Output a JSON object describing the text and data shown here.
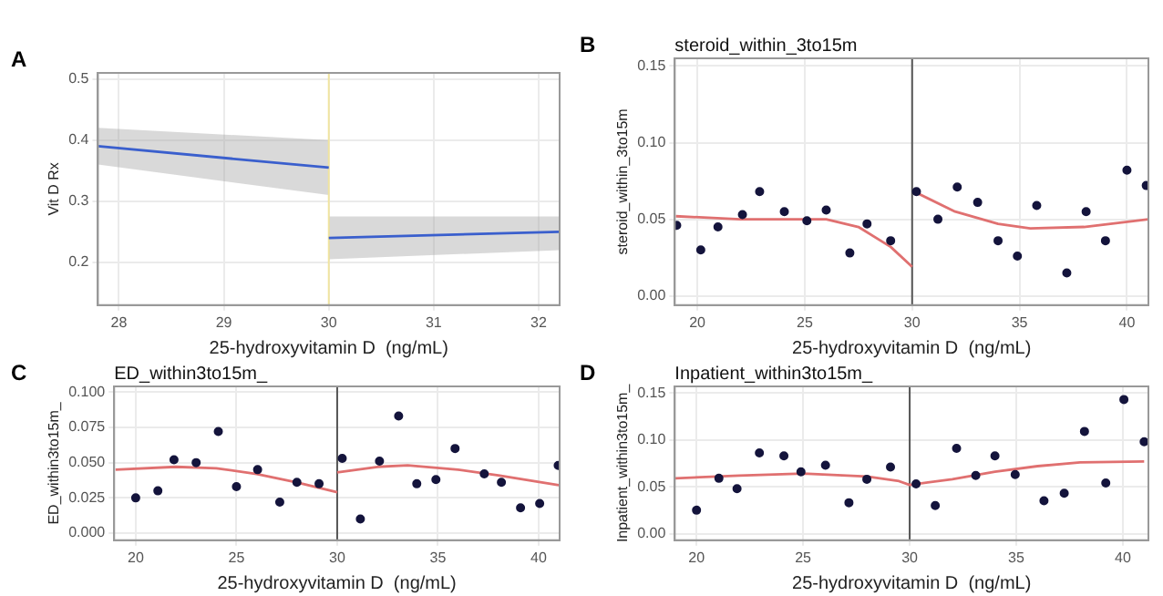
{
  "chart_data": [
    {
      "type": "line",
      "annotations": [
        "A"
      ],
      "xlabel": "25-hydroxyvitamin D  (ng/mL)",
      "ylabel": "Vit D Rx",
      "xlim": [
        27.8,
        32.2
      ],
      "xticks": [
        28,
        29,
        30,
        31,
        32
      ],
      "ylim": [
        0.13,
        0.51
      ],
      "yticks": [
        0.2,
        0.3,
        0.4,
        0.5
      ],
      "grid": true,
      "ref_lines": [
        {
          "axis": "x",
          "value": 30,
          "color": "#f0e4a0"
        }
      ],
      "series": [
        {
          "color": "#3a5fcd",
          "x": [
            27.8,
            30
          ],
          "values": [
            0.39,
            0.355
          ],
          "lower": [
            0.36,
            0.31
          ],
          "upper": [
            0.42,
            0.4
          ]
        },
        {
          "color": "#3a5fcd",
          "x": [
            30,
            32.2
          ],
          "values": [
            0.24,
            0.25
          ],
          "lower": [
            0.205,
            0.22
          ],
          "upper": [
            0.275,
            0.275
          ]
        }
      ]
    },
    {
      "type": "scatter",
      "annotations": [
        "B"
      ],
      "title": "steroid_within_3to15m",
      "xlabel": "25-hydroxyvitamin D  (ng/mL)",
      "ylabel": "steroid_within_3to15m",
      "xlim": [
        18.95,
        41
      ],
      "xticks": [
        20,
        25,
        30,
        35,
        40
      ],
      "ylim": [
        -0.006,
        0.155
      ],
      "yticks": [
        {
          "value": 0,
          "label": "0.00"
        },
        {
          "value": 0.05,
          "label": "0.05"
        },
        {
          "value": 0.1,
          "label": "0.10"
        },
        {
          "value": 0.15,
          "label": "0.15"
        }
      ],
      "grid": true,
      "ref_lines": [
        {
          "axis": "x",
          "value": 30,
          "color": "#555555"
        }
      ],
      "series": [
        {
          "color": "#14143c",
          "marker": "circle",
          "x": [
            19.04,
            20.16,
            20.96,
            22.1,
            22.9,
            24.05,
            25.1,
            26.0,
            27.1,
            27.9,
            29.0,
            30.2,
            31.2,
            32.1,
            33.05,
            34.0,
            34.9,
            35.8,
            37.2,
            38.1,
            39.0,
            40.0,
            40.9
          ],
          "values": [
            0.046,
            0.03,
            0.045,
            0.053,
            0.068,
            0.055,
            0.049,
            0.056,
            0.028,
            0.047,
            0.036,
            0.068,
            0.05,
            0.071,
            0.061,
            0.036,
            0.026,
            0.059,
            0.015,
            0.055,
            0.036,
            0.082,
            0.072
          ]
        },
        {
          "type": "line",
          "color": "#e07070",
          "x": [
            19,
            22,
            26,
            27.5,
            29,
            30
          ],
          "values": [
            0.052,
            0.05,
            0.05,
            0.045,
            0.032,
            0.019
          ]
        },
        {
          "type": "line",
          "color": "#e07070",
          "x": [
            30.1,
            32,
            34,
            35.5,
            38,
            41
          ],
          "values": [
            0.068,
            0.055,
            0.047,
            0.044,
            0.045,
            0.05
          ]
        }
      ]
    },
    {
      "type": "scatter",
      "annotations": [
        "C"
      ],
      "title": "ED_within3to15m_",
      "xlabel": "25-hydroxyvitamin D  (ng/mL)",
      "ylabel": "ED_within3to15m_",
      "xlim": [
        18.93,
        41.04
      ],
      "xticks": [
        20,
        25,
        30,
        35,
        40
      ],
      "ylim": [
        -0.005,
        0.104
      ],
      "yticks": [
        {
          "value": 0,
          "label": "0.000"
        },
        {
          "value": 0.025,
          "label": "0.025"
        },
        {
          "value": 0.05,
          "label": "0.050"
        },
        {
          "value": 0.075,
          "label": "0.075"
        },
        {
          "value": 0.1,
          "label": "0.100"
        }
      ],
      "grid": true,
      "ref_lines": [
        {
          "axis": "x",
          "value": 30,
          "color": "#555555"
        }
      ],
      "series": [
        {
          "color": "#14143c",
          "marker": "circle",
          "x": [
            20.0,
            21.1,
            21.9,
            23.0,
            24.1,
            25.0,
            26.05,
            27.15,
            28.0,
            29.1,
            30.25,
            31.15,
            32.1,
            33.05,
            33.95,
            34.9,
            35.85,
            37.3,
            38.15,
            39.1,
            40.05,
            40.97
          ],
          "values": [
            0.025,
            0.03,
            0.052,
            0.05,
            0.072,
            0.033,
            0.045,
            0.022,
            0.036,
            0.035,
            0.053,
            0.01,
            0.051,
            0.083,
            0.035,
            0.038,
            0.06,
            0.042,
            0.036,
            0.018,
            0.021,
            0.048
          ]
        },
        {
          "type": "line",
          "color": "#e07070",
          "x": [
            19,
            22,
            24,
            26,
            28,
            30
          ],
          "values": [
            0.045,
            0.047,
            0.046,
            0.042,
            0.036,
            0.029
          ]
        },
        {
          "type": "line",
          "color": "#e07070",
          "x": [
            30,
            32,
            33.5,
            36,
            38,
            41
          ],
          "values": [
            0.043,
            0.047,
            0.048,
            0.045,
            0.041,
            0.034
          ]
        }
      ]
    },
    {
      "type": "scatter",
      "annotations": [
        "D"
      ],
      "title": "Inpatient_within3to15m_",
      "xlabel": "25-hydroxyvitamin D  (ng/mL)",
      "ylabel": "Inpatient_within3to15m_",
      "xlim": [
        18.98,
        41.2
      ],
      "xticks": [
        20,
        25,
        30,
        35,
        40
      ],
      "ylim": [
        -0.007,
        0.157
      ],
      "yticks": [
        {
          "value": 0,
          "label": "0.00"
        },
        {
          "value": 0.05,
          "label": "0.05"
        },
        {
          "value": 0.1,
          "label": "0.10"
        },
        {
          "value": 0.15,
          "label": "0.15"
        }
      ],
      "grid": true,
      "ref_lines": [
        {
          "axis": "x",
          "value": 30,
          "color": "#555555"
        }
      ],
      "series": [
        {
          "color": "#14143c",
          "marker": "circle",
          "x": [
            20.0,
            21.05,
            21.9,
            22.95,
            24.1,
            24.9,
            26.05,
            27.15,
            27.99,
            29.1,
            30.3,
            31.2,
            32.2,
            33.1,
            34.0,
            34.95,
            36.3,
            37.25,
            38.2,
            39.2,
            40.05,
            41.0
          ],
          "values": [
            0.025,
            0.059,
            0.048,
            0.086,
            0.083,
            0.066,
            0.073,
            0.033,
            0.058,
            0.071,
            0.053,
            0.03,
            0.091,
            0.062,
            0.083,
            0.063,
            0.035,
            0.043,
            0.109,
            0.054,
            0.143,
            0.098
          ]
        },
        {
          "type": "line",
          "color": "#e07070",
          "x": [
            19,
            22,
            25,
            28,
            29.5,
            30,
            32,
            34,
            36,
            38,
            41
          ],
          "values": [
            0.059,
            0.062,
            0.064,
            0.061,
            0.056,
            0.052,
            0.058,
            0.066,
            0.072,
            0.076,
            0.077
          ]
        }
      ]
    }
  ]
}
